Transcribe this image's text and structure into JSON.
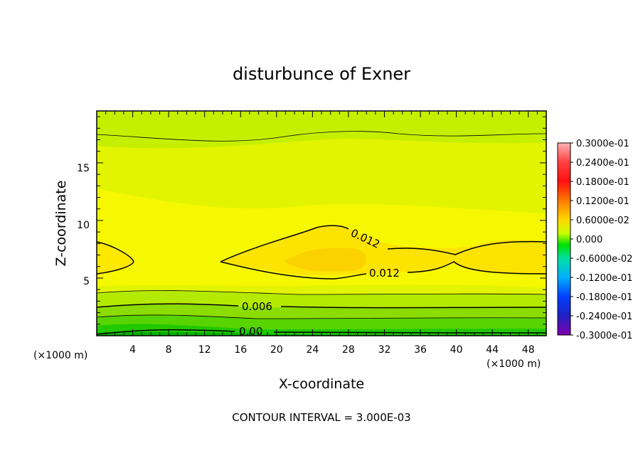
{
  "chart_data": {
    "type": "contour",
    "title": "disturbunce of Exner",
    "xlabel": "X-coordinate",
    "ylabel": "Z-coordinate",
    "x_unit": "(×1000 m)",
    "x_unit_right": "(×1000 m)",
    "xlim": [
      0,
      50
    ],
    "ylim": [
      0,
      19.5
    ],
    "x_ticks": [
      "4",
      "8",
      "12",
      "16",
      "20",
      "24",
      "28",
      "32",
      "36",
      "40",
      "44",
      "48"
    ],
    "y_ticks": [
      "5",
      "10",
      "15"
    ],
    "contour_interval_text": "CONTOUR INTERVAL = 3.000E-03",
    "contour_labels": [
      "0.012",
      "0.012",
      "0.006",
      "0.00"
    ],
    "colorbar": {
      "labels": [
        "0.3000e-01",
        "0.2400e-01",
        "0.1800e-01",
        "0.1200e-01",
        "0.6000e-02",
        "0.000",
        "-0.6000e-02",
        "-0.1200e-01",
        "-0.1800e-01",
        "-0.2400e-01",
        "-0.3000e-01"
      ],
      "min": -0.03,
      "max": 0.03
    }
  }
}
